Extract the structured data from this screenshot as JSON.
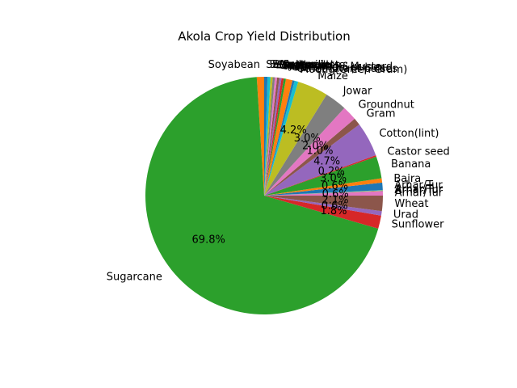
{
  "chart_data": {
    "type": "pie",
    "title": "Akola Crop Yield Distribution",
    "start_angle_deg": 90,
    "direction": "counterclockwise",
    "slices": [
      {
        "label": "Soyabean",
        "pct_label": "",
        "value": 1.0,
        "color": "#ff7f0e"
      },
      {
        "label": "Sugarcane",
        "pct_label": "69.8%",
        "value": 69.8,
        "color": "#2ca02c"
      },
      {
        "label": "Sunflower",
        "pct_label": "1.8%",
        "value": 1.8,
        "color": "#d62728"
      },
      {
        "label": "Urad",
        "pct_label": "0.6%",
        "value": 0.6,
        "color": "#9467bd"
      },
      {
        "label": "Wheat",
        "pct_label": "2.1%",
        "value": 2.1,
        "color": "#8c564b"
      },
      {
        "label": "Arhar/Tur",
        "pct_label": "0.6%",
        "value": 0.6,
        "color": "#e377c2"
      },
      {
        "label": "Arhar/Tur",
        "pct_label": "",
        "value": 0.05,
        "color": "#7f7f7f"
      },
      {
        "label": "Arhar/Tur",
        "pct_label": "",
        "value": 0.05,
        "color": "#bcbd22"
      },
      {
        "label": "Arhar/Tur",
        "pct_label": "",
        "value": 0.05,
        "color": "#17becf"
      },
      {
        "label": "Arhar/Tur",
        "pct_label": "",
        "value": 1.0,
        "color": "#1f77b4"
      },
      {
        "label": "Bajra",
        "pct_label": "0.6%",
        "value": 0.6,
        "color": "#ff7f0e"
      },
      {
        "label": "Banana",
        "pct_label": "3.0%",
        "value": 3.0,
        "color": "#2ca02c"
      },
      {
        "label": "Castor seed",
        "pct_label": "0.2%",
        "value": 0.2,
        "color": "#d62728"
      },
      {
        "label": "Cotton(lint)",
        "pct_label": "4.7%",
        "value": 4.7,
        "color": "#9467bd"
      },
      {
        "label": "Gram",
        "pct_label": "1.0%",
        "value": 1.0,
        "color": "#8c564b"
      },
      {
        "label": "Groundnut",
        "pct_label": "2.0%",
        "value": 2.0,
        "color": "#e377c2"
      },
      {
        "label": "Jowar",
        "pct_label": "3.0%",
        "value": 3.0,
        "color": "#7f7f7f"
      },
      {
        "label": "Maize",
        "pct_label": "4.2%",
        "value": 4.2,
        "color": "#bcbd22"
      },
      {
        "label": "Moong(Green Gram)",
        "pct_label": "",
        "value": 0.5,
        "color": "#17becf"
      },
      {
        "label": "Other Kharif pulses",
        "pct_label": "",
        "value": 0.3,
        "color": "#1f77b4"
      },
      {
        "label": "Other Rabi pulses",
        "pct_label": "",
        "value": 0.9,
        "color": "#ff7f0e"
      },
      {
        "label": "Rapeseed &Mustard",
        "pct_label": "",
        "value": 0.3,
        "color": "#2ca02c"
      },
      {
        "label": "Rice",
        "pct_label": "",
        "value": 0.3,
        "color": "#d62728"
      },
      {
        "label": "Safflower",
        "pct_label": "",
        "value": 0.3,
        "color": "#9467bd"
      },
      {
        "label": "Sesamum",
        "pct_label": "",
        "value": 0.3,
        "color": "#8c564b"
      },
      {
        "label": "Small millets",
        "pct_label": "",
        "value": 0.3,
        "color": "#e377c2"
      },
      {
        "label": "Soyabean",
        "pct_label": "",
        "value": 0.3,
        "color": "#7f7f7f"
      },
      {
        "label": "Small millets",
        "pct_label": "",
        "value": 0.3,
        "color": "#bcbd22"
      },
      {
        "label": "Sesamum",
        "pct_label": "",
        "value": 0.4,
        "color": "#17becf"
      },
      {
        "label": "Safflower",
        "pct_label": "",
        "value": 0.45,
        "color": "#1f77b4"
      }
    ]
  }
}
